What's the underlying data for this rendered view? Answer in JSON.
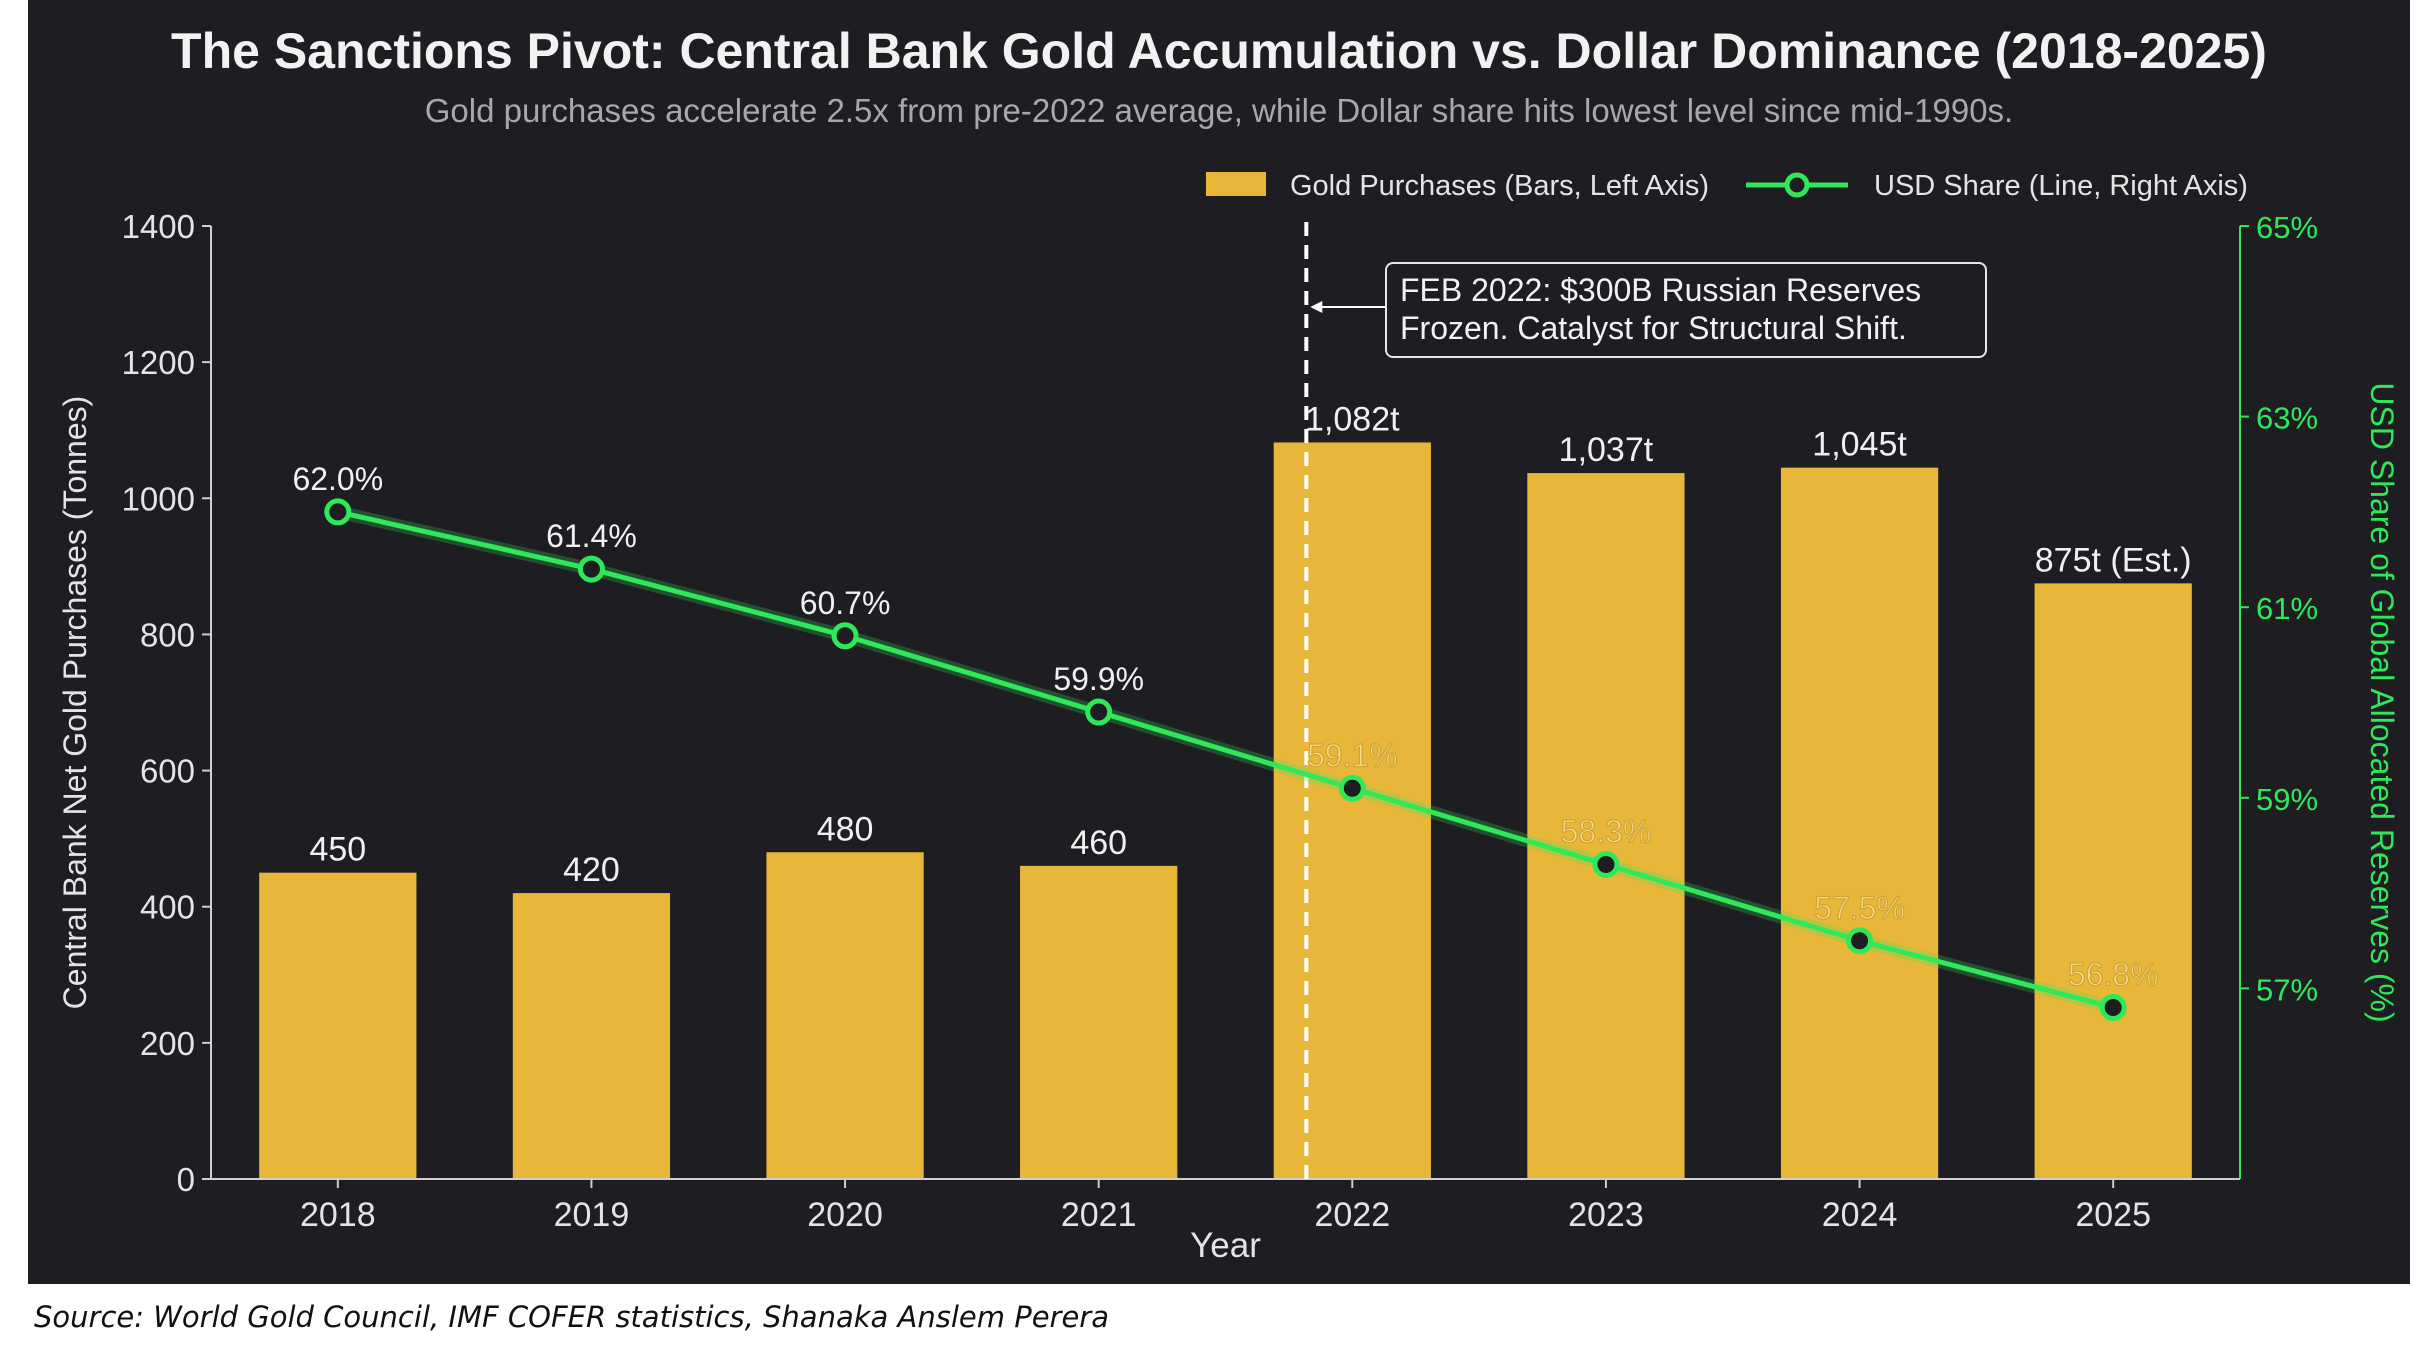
{
  "source_caption": "Source: World Gold Council, IMF COFER statistics, Shanaka Anslem Perera",
  "chart_data": {
    "type": "bar",
    "title": "The Sanctions Pivot: Central Bank Gold Accumulation vs. Dollar Dominance (2018-2025)",
    "subtitle": "Gold purchases accelerate 2.5x from pre-2022 average, while Dollar share hits lowest level since mid-1990s.",
    "xlabel": "Year",
    "ylabel": "Central Bank Net Gold Purchases (Tonnes)",
    "ylabel_right": "USD Share of Global Allocated Reserves (%)",
    "categories": [
      "2018",
      "2019",
      "2020",
      "2021",
      "2022",
      "2023",
      "2024",
      "2025"
    ],
    "ylim": [
      0,
      1400
    ],
    "y_ticks": [
      0,
      200,
      400,
      600,
      800,
      1000,
      1200,
      1400
    ],
    "ylim_right": [
      55,
      65
    ],
    "y_ticks_right": [
      57,
      59,
      61,
      63,
      65
    ],
    "y_tick_labels_right": [
      "57%",
      "59%",
      "61%",
      "63%",
      "65%"
    ],
    "series": [
      {
        "name": "Gold Purchases (Bars, Left Axis)",
        "kind": "bar",
        "axis": "left",
        "color": "#e8b73a",
        "values": [
          450,
          420,
          480,
          460,
          1082,
          1037,
          1045,
          875
        ],
        "labels": [
          "450",
          "420",
          "480",
          "460",
          "1,082t",
          "1,037t",
          "1,045t",
          "875t (Est.)"
        ]
      },
      {
        "name": "USD Share (Line, Right Axis)",
        "kind": "line",
        "axis": "right",
        "color": "#2fe85a",
        "values": [
          62.0,
          61.4,
          60.7,
          59.9,
          59.1,
          58.3,
          57.5,
          56.8
        ],
        "labels": [
          "62.0%",
          "61.4%",
          "60.7%",
          "59.9%",
          "59.1%",
          "58.3%",
          "57.5%",
          "56.8%"
        ]
      }
    ],
    "annotation": {
      "category": "2022",
      "lines": [
        "FEB 2022: $300B Russian Reserves",
        "Frozen. Catalyst for Structural Shift."
      ]
    },
    "legend_position": "top-right",
    "grid": false
  }
}
